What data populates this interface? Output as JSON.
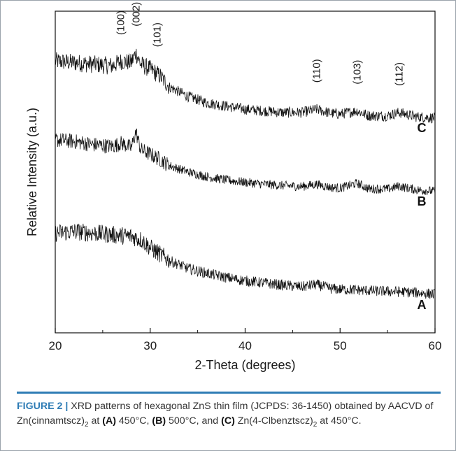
{
  "chart_data": {
    "type": "line",
    "xlabel": "2-Theta (degrees)",
    "ylabel": "Relative Intensity (a.u.)",
    "xlim": [
      20,
      60
    ],
    "xticks": [
      "20",
      "30",
      "40",
      "50",
      "60"
    ],
    "yticks": [],
    "grid": false,
    "series": [
      {
        "name": "C",
        "points": [
          [
            20,
            0.845
          ],
          [
            22,
            0.84
          ],
          [
            24,
            0.835
          ],
          [
            26,
            0.83
          ],
          [
            27,
            0.845
          ],
          [
            28,
            0.84
          ],
          [
            28.5,
            0.87
          ],
          [
            29,
            0.835
          ],
          [
            30,
            0.82
          ],
          [
            31,
            0.8
          ],
          [
            32,
            0.765
          ],
          [
            34,
            0.735
          ],
          [
            36,
            0.715
          ],
          [
            38,
            0.705
          ],
          [
            40,
            0.695
          ],
          [
            42,
            0.69
          ],
          [
            44,
            0.685
          ],
          [
            46,
            0.685
          ],
          [
            47.5,
            0.695
          ],
          [
            49,
            0.683
          ],
          [
            50,
            0.68
          ],
          [
            51.8,
            0.69
          ],
          [
            53,
            0.675
          ],
          [
            55,
            0.675
          ],
          [
            56.2,
            0.685
          ],
          [
            58,
            0.672
          ],
          [
            60,
            0.668
          ]
        ]
      },
      {
        "name": "B",
        "points": [
          [
            20,
            0.6
          ],
          [
            22,
            0.595
          ],
          [
            24,
            0.585
          ],
          [
            26,
            0.58
          ],
          [
            27,
            0.59
          ],
          [
            28,
            0.575
          ],
          [
            28.5,
            0.625
          ],
          [
            29,
            0.57
          ],
          [
            30,
            0.555
          ],
          [
            31,
            0.54
          ],
          [
            32,
            0.52
          ],
          [
            34,
            0.5
          ],
          [
            36,
            0.485
          ],
          [
            38,
            0.475
          ],
          [
            40,
            0.468
          ],
          [
            42,
            0.462
          ],
          [
            44,
            0.458
          ],
          [
            46,
            0.455
          ],
          [
            47.5,
            0.462
          ],
          [
            49,
            0.452
          ],
          [
            50,
            0.45
          ],
          [
            51.8,
            0.465
          ],
          [
            53,
            0.448
          ],
          [
            55,
            0.447
          ],
          [
            56.2,
            0.456
          ],
          [
            58,
            0.445
          ],
          [
            60,
            0.44
          ]
        ]
      },
      {
        "name": "A",
        "points": [
          [
            20,
            0.31
          ],
          [
            22,
            0.315
          ],
          [
            24,
            0.31
          ],
          [
            26,
            0.305
          ],
          [
            28,
            0.3
          ],
          [
            29,
            0.29
          ],
          [
            30,
            0.265
          ],
          [
            31,
            0.245
          ],
          [
            32,
            0.225
          ],
          [
            34,
            0.2
          ],
          [
            36,
            0.185
          ],
          [
            38,
            0.172
          ],
          [
            40,
            0.162
          ],
          [
            42,
            0.155
          ],
          [
            44,
            0.148
          ],
          [
            46,
            0.143
          ],
          [
            47.5,
            0.15
          ],
          [
            49,
            0.138
          ],
          [
            50,
            0.135
          ],
          [
            52,
            0.133
          ],
          [
            54,
            0.13
          ],
          [
            56,
            0.128
          ],
          [
            58,
            0.125
          ],
          [
            60,
            0.12
          ]
        ]
      }
    ],
    "peak_annotations": [
      {
        "label": "(100)",
        "x": 26.9
      },
      {
        "label": "(002)",
        "x": 28.5
      },
      {
        "label": "(101)",
        "x": 30.7
      },
      {
        "label": "(110)",
        "x": 47.5
      },
      {
        "label": "(103)",
        "x": 51.8
      },
      {
        "label": "(112)",
        "x": 56.2
      }
    ]
  },
  "caption": {
    "label": "FIGURE 2 |",
    "part1": " XRD patterns of hexagonal ZnS thin film (JCPDS: 36-1450) obtained by AACVD of Zn(cinnamtscz)",
    "sub1": "2",
    "part2": " at ",
    "tagA": "(A)",
    "part3": " 450°C, ",
    "tagB": "(B)",
    "part4": " 500°C, and ",
    "tagC": "(C)",
    "part5": " Zn(4-Clbenztscz)",
    "sub2": "2",
    "part6": " at 450°C."
  },
  "colors": {
    "accent": "#2e7cb5",
    "line": "#111111"
  }
}
